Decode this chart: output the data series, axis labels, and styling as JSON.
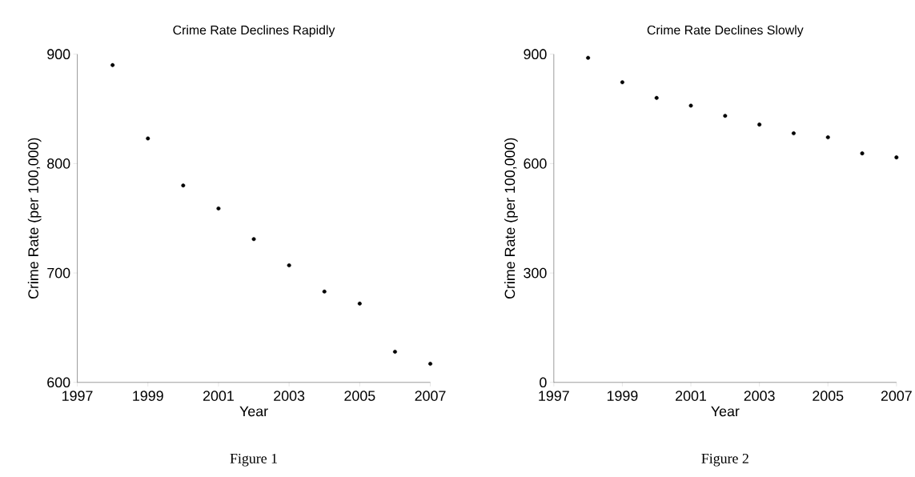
{
  "chart_data": [
    {
      "type": "scatter",
      "title": "Crime Rate Declines Rapidly",
      "xlabel": "Year",
      "ylabel": "Crime Rate (per 100,000)",
      "x": [
        1998,
        1999,
        2000,
        2001,
        2002,
        2003,
        2004,
        2005,
        2006,
        2007
      ],
      "values": [
        890,
        823,
        780,
        759,
        731,
        707,
        683,
        672,
        628,
        617
      ],
      "color": "#000000",
      "xlim": [
        1997,
        2007
      ],
      "xticks": [
        1997,
        1999,
        2001,
        2003,
        2005,
        2007
      ],
      "ylim": [
        600,
        900
      ],
      "yticks": [
        600,
        700,
        800,
        900
      ],
      "grid": false,
      "annotations": [
        "Figure 1"
      ]
    },
    {
      "type": "scatter",
      "title": "Crime Rate Declines Slowly",
      "xlabel": "Year",
      "ylabel": "Crime Rate (per 100,000)",
      "x": [
        1998,
        1999,
        2000,
        2001,
        2002,
        2003,
        2004,
        2005,
        2006,
        2007
      ],
      "values": [
        890,
        823,
        780,
        759,
        731,
        707,
        683,
        672,
        628,
        617
      ],
      "color": "#000000",
      "xlim": [
        1997,
        2007
      ],
      "xticks": [
        1997,
        1999,
        2001,
        2003,
        2005,
        2007
      ],
      "ylim": [
        0,
        900
      ],
      "yticks": [
        0,
        300,
        600,
        900
      ],
      "grid": false,
      "annotations": [
        "Figure 2"
      ]
    }
  ]
}
